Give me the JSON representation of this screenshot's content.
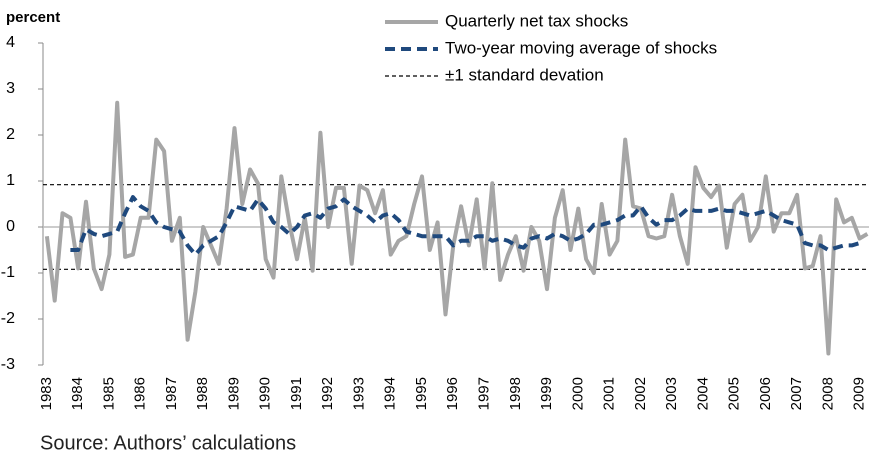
{
  "chart_data": {
    "type": "line",
    "y_label": "percent",
    "source": "Source: Authors’ calculations",
    "x": [
      1983,
      1983.25,
      1983.5,
      1983.75,
      1984,
      1984.25,
      1984.5,
      1984.75,
      1985,
      1985.25,
      1985.5,
      1985.75,
      1986,
      1986.25,
      1986.5,
      1986.75,
      1987,
      1987.25,
      1987.5,
      1987.75,
      1988,
      1988.25,
      1988.5,
      1988.75,
      1989,
      1989.25,
      1989.5,
      1989.75,
      1990,
      1990.25,
      1990.5,
      1990.75,
      1991,
      1991.25,
      1991.5,
      1991.75,
      1992,
      1992.25,
      1992.5,
      1992.75,
      1993,
      1993.25,
      1993.5,
      1993.75,
      1994,
      1994.25,
      1994.5,
      1994.75,
      1995,
      1995.25,
      1995.5,
      1995.75,
      1996,
      1996.25,
      1996.5,
      1996.75,
      1997,
      1997.25,
      1997.5,
      1997.75,
      1998,
      1998.25,
      1998.5,
      1998.75,
      1999,
      1999.25,
      1999.5,
      1999.75,
      2000,
      2000.25,
      2000.5,
      2000.75,
      2001,
      2001.25,
      2001.5,
      2001.75,
      2002,
      2002.25,
      2002.5,
      2002.75,
      2003,
      2003.25,
      2003.5,
      2003.75,
      2004,
      2004.25,
      2004.5,
      2004.75,
      2005,
      2005.25,
      2005.5,
      2005.75,
      2006,
      2006.25,
      2006.5,
      2006.75,
      2007,
      2007.25,
      2007.5,
      2007.75,
      2008,
      2008.25,
      2008.5,
      2008.75,
      2009,
      2009.25
    ],
    "series": [
      {
        "name": "Quarterly net tax shocks",
        "color": "#a6a6a6",
        "style": "solid",
        "values": [
          -0.2,
          -1.6,
          0.3,
          0.2,
          -0.9,
          0.55,
          -0.9,
          -1.35,
          -0.6,
          2.7,
          -0.65,
          -0.6,
          0.2,
          0.2,
          1.9,
          1.65,
          -0.3,
          0.2,
          -2.45,
          -1.4,
          0.0,
          -0.4,
          -0.8,
          0.4,
          2.15,
          0.5,
          1.25,
          0.95,
          -0.7,
          -1.1,
          1.1,
          0.1,
          -0.7,
          0.2,
          -0.95,
          2.05,
          0.0,
          0.85,
          0.85,
          -0.8,
          0.9,
          0.8,
          0.3,
          0.8,
          -0.6,
          -0.3,
          -0.2,
          0.5,
          1.1,
          -0.5,
          0.1,
          -1.9,
          -0.4,
          0.45,
          -0.4,
          0.6,
          -0.9,
          0.95,
          -1.15,
          -0.6,
          -0.2,
          -0.95,
          0.0,
          -0.3,
          -1.35,
          0.2,
          0.8,
          -0.5,
          0.4,
          -0.7,
          -1.0,
          0.5,
          -0.6,
          -0.3,
          1.9,
          0.45,
          0.4,
          -0.2,
          -0.25,
          -0.2,
          0.7,
          -0.2,
          -0.8,
          1.3,
          0.85,
          0.65,
          0.9,
          -0.45,
          0.5,
          0.7,
          -0.3,
          0.0,
          1.1,
          -0.1,
          0.3,
          0.3,
          0.7,
          -0.9,
          -0.85,
          -0.2,
          -2.75,
          0.6,
          0.1,
          0.2,
          -0.25,
          -0.15
        ]
      },
      {
        "name": "Two-year moving average of shocks",
        "color": "#1f497d",
        "style": "dashed",
        "values": [
          null,
          null,
          null,
          -0.5,
          -0.5,
          -0.05,
          -0.15,
          -0.2,
          -0.15,
          -0.1,
          0.3,
          0.65,
          0.45,
          0.35,
          0.1,
          0.0,
          -0.05,
          -0.1,
          -0.4,
          -0.6,
          -0.4,
          -0.3,
          -0.2,
          0.1,
          0.45,
          0.4,
          0.35,
          0.6,
          0.4,
          0.1,
          0.0,
          -0.15,
          0.0,
          0.25,
          0.3,
          0.2,
          0.4,
          0.45,
          0.6,
          0.45,
          0.35,
          0.25,
          0.1,
          0.25,
          0.3,
          0.15,
          -0.1,
          -0.15,
          -0.2,
          -0.2,
          -0.2,
          -0.2,
          -0.4,
          -0.3,
          -0.3,
          -0.2,
          -0.2,
          -0.3,
          -0.25,
          -0.3,
          -0.4,
          -0.45,
          -0.25,
          -0.2,
          -0.25,
          -0.15,
          -0.2,
          -0.3,
          -0.25,
          -0.15,
          0.05,
          0.05,
          0.1,
          0.15,
          0.25,
          0.25,
          0.45,
          0.2,
          0.05,
          0.15,
          0.15,
          0.25,
          0.4,
          0.35,
          0.35,
          0.35,
          0.4,
          0.35,
          0.35,
          0.3,
          0.25,
          0.3,
          0.35,
          0.25,
          0.15,
          0.1,
          0.05,
          -0.35,
          -0.4,
          -0.4,
          -0.5,
          -0.45,
          -0.4,
          -0.4,
          -0.35,
          null
        ]
      }
    ],
    "reference_lines": [
      {
        "name": "±1 standard devation",
        "color": "#000000",
        "style": "dashed",
        "values": [
          0.92,
          -0.92
        ]
      }
    ],
    "xlim": [
      1982.875,
      2009.3
    ],
    "xticks": [
      1983,
      1984,
      1985,
      1986,
      1987,
      1988,
      1989,
      1990,
      1991,
      1992,
      1993,
      1994,
      1995,
      1996,
      1997,
      1998,
      1999,
      2000,
      2001,
      2002,
      2003,
      2004,
      2005,
      2006,
      2007,
      2008,
      2009
    ],
    "ylim": [
      -3,
      4
    ],
    "yticks": [
      -3,
      -2,
      -1,
      0,
      1,
      2,
      3,
      4
    ],
    "grid": false
  }
}
